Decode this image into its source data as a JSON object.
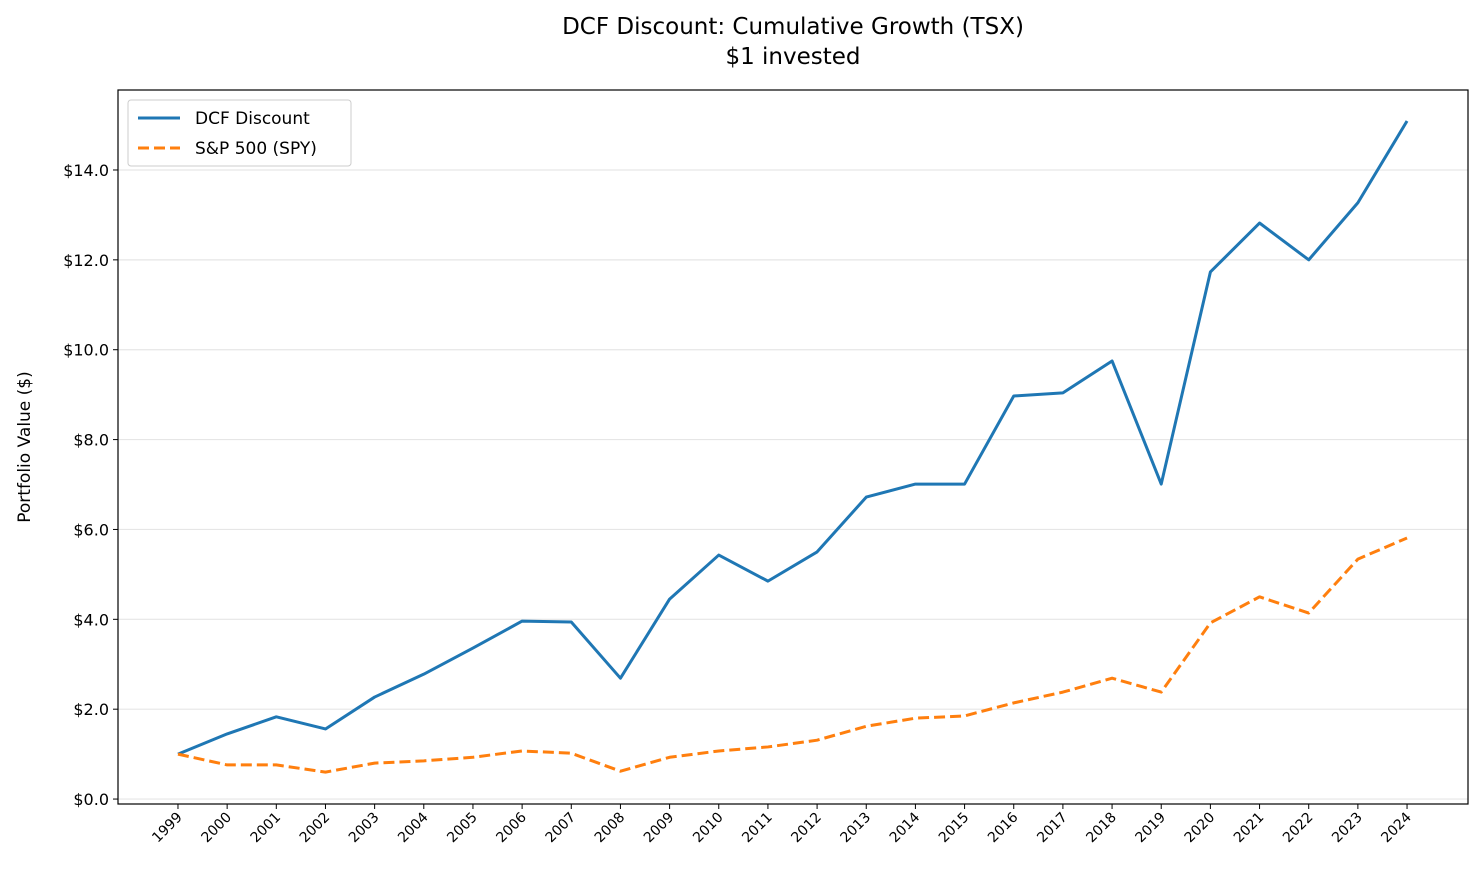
{
  "chart_data": {
    "type": "line",
    "title": "DCF Discount: Cumulative Growth (TSX)",
    "subtitle": "$1 invested",
    "xlabel": "",
    "ylabel": "Portfolio Value ($)",
    "x": [
      1999,
      2000,
      2001,
      2002,
      2003,
      2004,
      2005,
      2006,
      2007,
      2008,
      2009,
      2010,
      2011,
      2012,
      2013,
      2014,
      2015,
      2016,
      2017,
      2018,
      2019,
      2020,
      2021,
      2022,
      2023,
      2024
    ],
    "xlim": [
      1997.78,
      2025.24
    ],
    "ylim": [
      -0.11,
      15.78
    ],
    "yticks": [
      0,
      2,
      4,
      6,
      8,
      10,
      12,
      14
    ],
    "ytick_labels": [
      "$0.0",
      "$2.0",
      "$4.0",
      "$6.0",
      "$8.0",
      "$10.0",
      "$12.0",
      "$14.0"
    ],
    "grid": "horizontal",
    "legend_placement": "upper-left",
    "series": [
      {
        "name": "DCF Discount",
        "color": "#1f77b4",
        "style": "solid",
        "values": [
          1.0,
          1.45,
          1.83,
          1.56,
          2.27,
          2.78,
          3.36,
          3.96,
          3.94,
          2.69,
          4.45,
          5.43,
          4.85,
          5.5,
          6.72,
          7.01,
          7.01,
          8.97,
          9.04,
          9.75,
          7.01,
          11.73,
          12.82,
          12.0,
          13.27,
          15.09
        ]
      },
      {
        "name": "S&P 500 (SPY)",
        "color": "#ff7f0e",
        "style": "dashed",
        "values": [
          1.0,
          0.76,
          0.76,
          0.6,
          0.8,
          0.85,
          0.93,
          1.07,
          1.02,
          0.62,
          0.93,
          1.07,
          1.16,
          1.31,
          1.62,
          1.8,
          1.85,
          2.14,
          2.38,
          2.69,
          2.38,
          3.92,
          4.5,
          4.14,
          5.34,
          5.81
        ]
      }
    ]
  }
}
